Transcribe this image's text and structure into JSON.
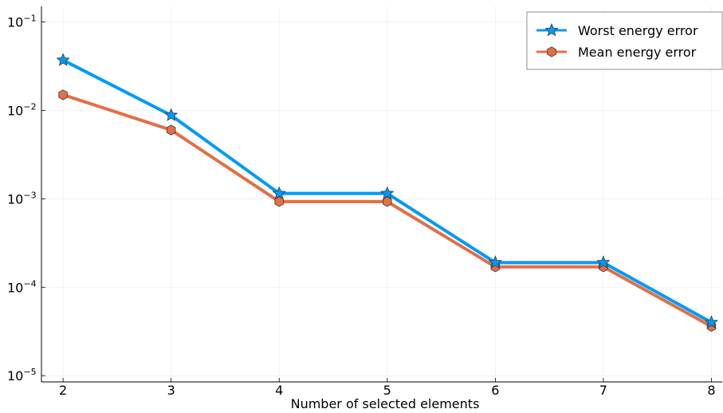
{
  "chart_data": {
    "type": "line",
    "title": "",
    "xlabel": "Number of selected elements",
    "ylabel": "",
    "x": [
      2,
      3,
      4,
      5,
      6,
      7,
      8
    ],
    "xlim": [
      1.8,
      8.1
    ],
    "ylim": [
      8.5e-06,
      0.15
    ],
    "yscale": "log",
    "grid": true,
    "legend_position": "top-right",
    "xticks": [
      "2",
      "3",
      "4",
      "5",
      "6",
      "7",
      "8"
    ],
    "yticks": [
      {
        "value": 1e-05,
        "base": "10",
        "exp": "−5"
      },
      {
        "value": 0.0001,
        "base": "10",
        "exp": "−4"
      },
      {
        "value": 0.001,
        "base": "10",
        "exp": "−3"
      },
      {
        "value": 0.01,
        "base": "10",
        "exp": "−2"
      },
      {
        "value": 0.1,
        "base": "10",
        "exp": "−1"
      }
    ],
    "series": [
      {
        "name": "Worst energy error",
        "values": [
          0.037,
          0.0088,
          0.00115,
          0.00115,
          0.00019,
          0.00019,
          4e-05
        ],
        "color": "#009af9",
        "marker": "star"
      },
      {
        "name": "Mean energy error",
        "values": [
          0.015,
          0.006,
          0.00093,
          0.00093,
          0.00017,
          0.00017,
          3.6e-05
        ],
        "color": "#e26f46",
        "marker": "hexagon"
      }
    ]
  }
}
